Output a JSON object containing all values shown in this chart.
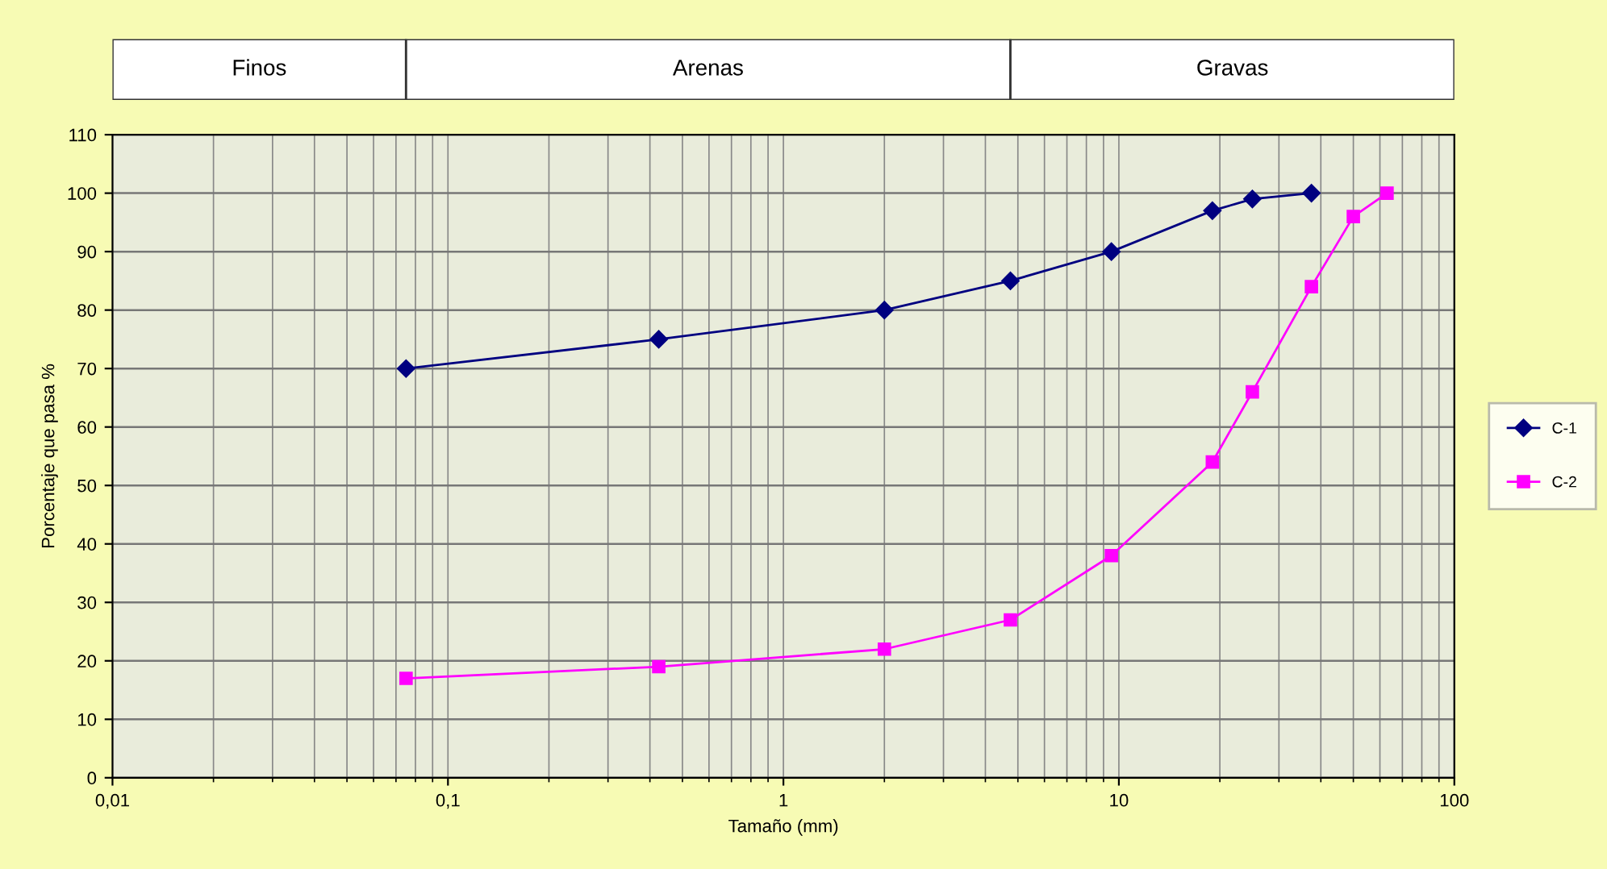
{
  "chart_data": {
    "type": "line",
    "xlabel": "Tamaño (mm)",
    "ylabel": "Porcentaje que pasa %",
    "log": "x",
    "xlim": [
      0.01,
      100
    ],
    "xticks": [
      {
        "value": 0.01,
        "label": "0,01"
      },
      {
        "value": 0.1,
        "label": "0,1"
      },
      1,
      10,
      100
    ],
    "ylim": [
      0,
      110
    ],
    "yticks": [
      0,
      10,
      20,
      30,
      40,
      50,
      60,
      70,
      80,
      90,
      100,
      110
    ],
    "grid": true,
    "legend": "right",
    "line_style": "solid",
    "annotations": [
      "Finos",
      "Arenas",
      "Gravas"
    ],
    "series": [
      {
        "name": "C-1",
        "color": "#000080",
        "marker": "diamond",
        "x": [
          0.075,
          0.425,
          2,
          4.75,
          9.5,
          19,
          25,
          37.5
        ],
        "values": [
          70,
          75,
          80,
          85,
          90,
          97,
          99,
          100
        ]
      },
      {
        "name": "C-2",
        "color": "#ff00ff",
        "marker": "square",
        "x": [
          0.075,
          0.425,
          2,
          4.75,
          9.5,
          19,
          25,
          37.5,
          50,
          63
        ],
        "values": [
          17,
          19,
          22,
          27,
          38,
          54,
          66,
          84,
          96,
          100
        ]
      }
    ]
  }
}
